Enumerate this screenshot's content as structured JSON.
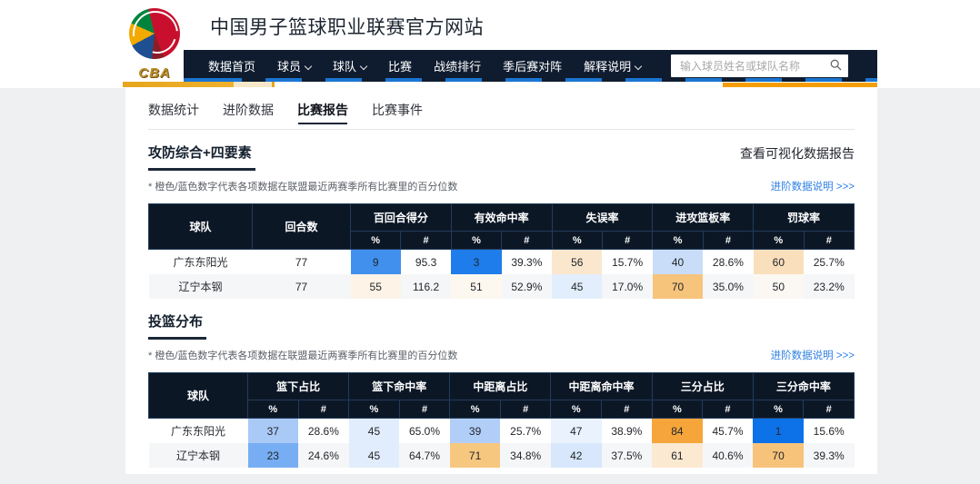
{
  "header": {
    "site_title": "中国男子篮球职业联赛官方网站",
    "logo_text": "CBA"
  },
  "nav": {
    "items": [
      {
        "key": "data-home",
        "label": "数据首页",
        "dropdown": false
      },
      {
        "key": "players",
        "label": "球员",
        "dropdown": true
      },
      {
        "key": "teams",
        "label": "球队",
        "dropdown": true
      },
      {
        "key": "games",
        "label": "比赛",
        "dropdown": false
      },
      {
        "key": "standings",
        "label": "战绩排行",
        "dropdown": false
      },
      {
        "key": "playoff-bracket",
        "label": "季后赛对阵",
        "dropdown": false
      },
      {
        "key": "glossary",
        "label": "解释说明",
        "dropdown": true
      }
    ],
    "search_placeholder": "输入球员姓名或球队名称",
    "search_icon": "magnifier-icon"
  },
  "tabs": [
    {
      "key": "stats",
      "label": "数据统计",
      "active": false
    },
    {
      "key": "advanced",
      "label": "进阶数据",
      "active": false
    },
    {
      "key": "report",
      "label": "比赛报告",
      "active": true
    },
    {
      "key": "events",
      "label": "比赛事件",
      "active": false
    }
  ],
  "links": {
    "visual_report": "查看可视化数据报告",
    "advanced_note": "进阶数据说明 >>>"
  },
  "percentile_note": "* 橙色/蓝色数字代表各项数据在联盟最近两赛季所有比赛里的百分位数",
  "colors": {
    "nav_bg": "#0f1c2f",
    "table_header_bg": "#0c1726",
    "accent_gold": "#e7a51d",
    "accent_orange": "#f59d05",
    "link_blue": "#2f80e4",
    "percentile_low_blue": "#0d72e8",
    "percentile_high_orange": "#f5a53a"
  },
  "sections": [
    {
      "key": "four-factors",
      "title": "攻防综合+四要素",
      "show_visual_link": true,
      "table": {
        "lead_headers": [
          "球队",
          "回合数"
        ],
        "groups": [
          "百回合得分",
          "有效命中率",
          "失误率",
          "进攻篮板率",
          "罚球率"
        ],
        "sub_headers": [
          "%",
          "#"
        ],
        "rows": [
          {
            "team": "广东东阳光",
            "lead": [
              "77"
            ],
            "pairs": [
              {
                "pct": "9",
                "bg": "#4190ee",
                "val": "95.3"
              },
              {
                "pct": "3",
                "bg": "#1e7ceb",
                "val": "39.3%"
              },
              {
                "pct": "56",
                "bg": "#fbe7cd",
                "val": "15.7%"
              },
              {
                "pct": "40",
                "bg": "#c9ddf8",
                "val": "28.6%"
              },
              {
                "pct": "60",
                "bg": "#fadfbc",
                "val": "25.7%"
              }
            ]
          },
          {
            "team": "辽宁本钢",
            "lead": [
              "77"
            ],
            "pairs": [
              {
                "pct": "55",
                "bg": "#fdf3e6",
                "val": "116.2"
              },
              {
                "pct": "51",
                "bg": "#fdf8ef",
                "val": "52.9%"
              },
              {
                "pct": "45",
                "bg": "#e3eefc",
                "val": "17.0%"
              },
              {
                "pct": "70",
                "bg": "#f7c47c",
                "val": "35.0%"
              },
              {
                "pct": "50",
                "bg": "#fbf8f3",
                "val": "23.2%"
              }
            ]
          }
        ]
      }
    },
    {
      "key": "shot-distribution",
      "title": "投篮分布",
      "show_visual_link": false,
      "table": {
        "lead_headers": [
          "球队"
        ],
        "groups": [
          "篮下占比",
          "篮下命中率",
          "中距离占比",
          "中距离命中率",
          "三分占比",
          "三分命中率"
        ],
        "sub_headers": [
          "%",
          "#"
        ],
        "rows": [
          {
            "team": "广东东阳光",
            "lead": [],
            "pairs": [
              {
                "pct": "37",
                "bg": "#a9c9f7",
                "val": "28.6%"
              },
              {
                "pct": "45",
                "bg": "#e1edfc",
                "val": "65.0%"
              },
              {
                "pct": "39",
                "bg": "#b1cef8",
                "val": "25.7%"
              },
              {
                "pct": "47",
                "bg": "#e9f2fd",
                "val": "38.9%"
              },
              {
                "pct": "84",
                "bg": "#f5a53a",
                "val": "45.7%"
              },
              {
                "pct": "1",
                "bg": "#0d72e8",
                "val": "15.6%"
              }
            ]
          },
          {
            "team": "辽宁本钢",
            "lead": [],
            "pairs": [
              {
                "pct": "23",
                "bg": "#77adf3",
                "val": "24.6%"
              },
              {
                "pct": "45",
                "bg": "#e1edfc",
                "val": "64.7%"
              },
              {
                "pct": "71",
                "bg": "#f6c77f",
                "val": "34.8%"
              },
              {
                "pct": "42",
                "bg": "#d8e7fb",
                "val": "37.5%"
              },
              {
                "pct": "61",
                "bg": "#fbe9d1",
                "val": "40.6%"
              },
              {
                "pct": "70",
                "bg": "#f7c37b",
                "val": "39.3%"
              }
            ]
          }
        ]
      }
    }
  ]
}
